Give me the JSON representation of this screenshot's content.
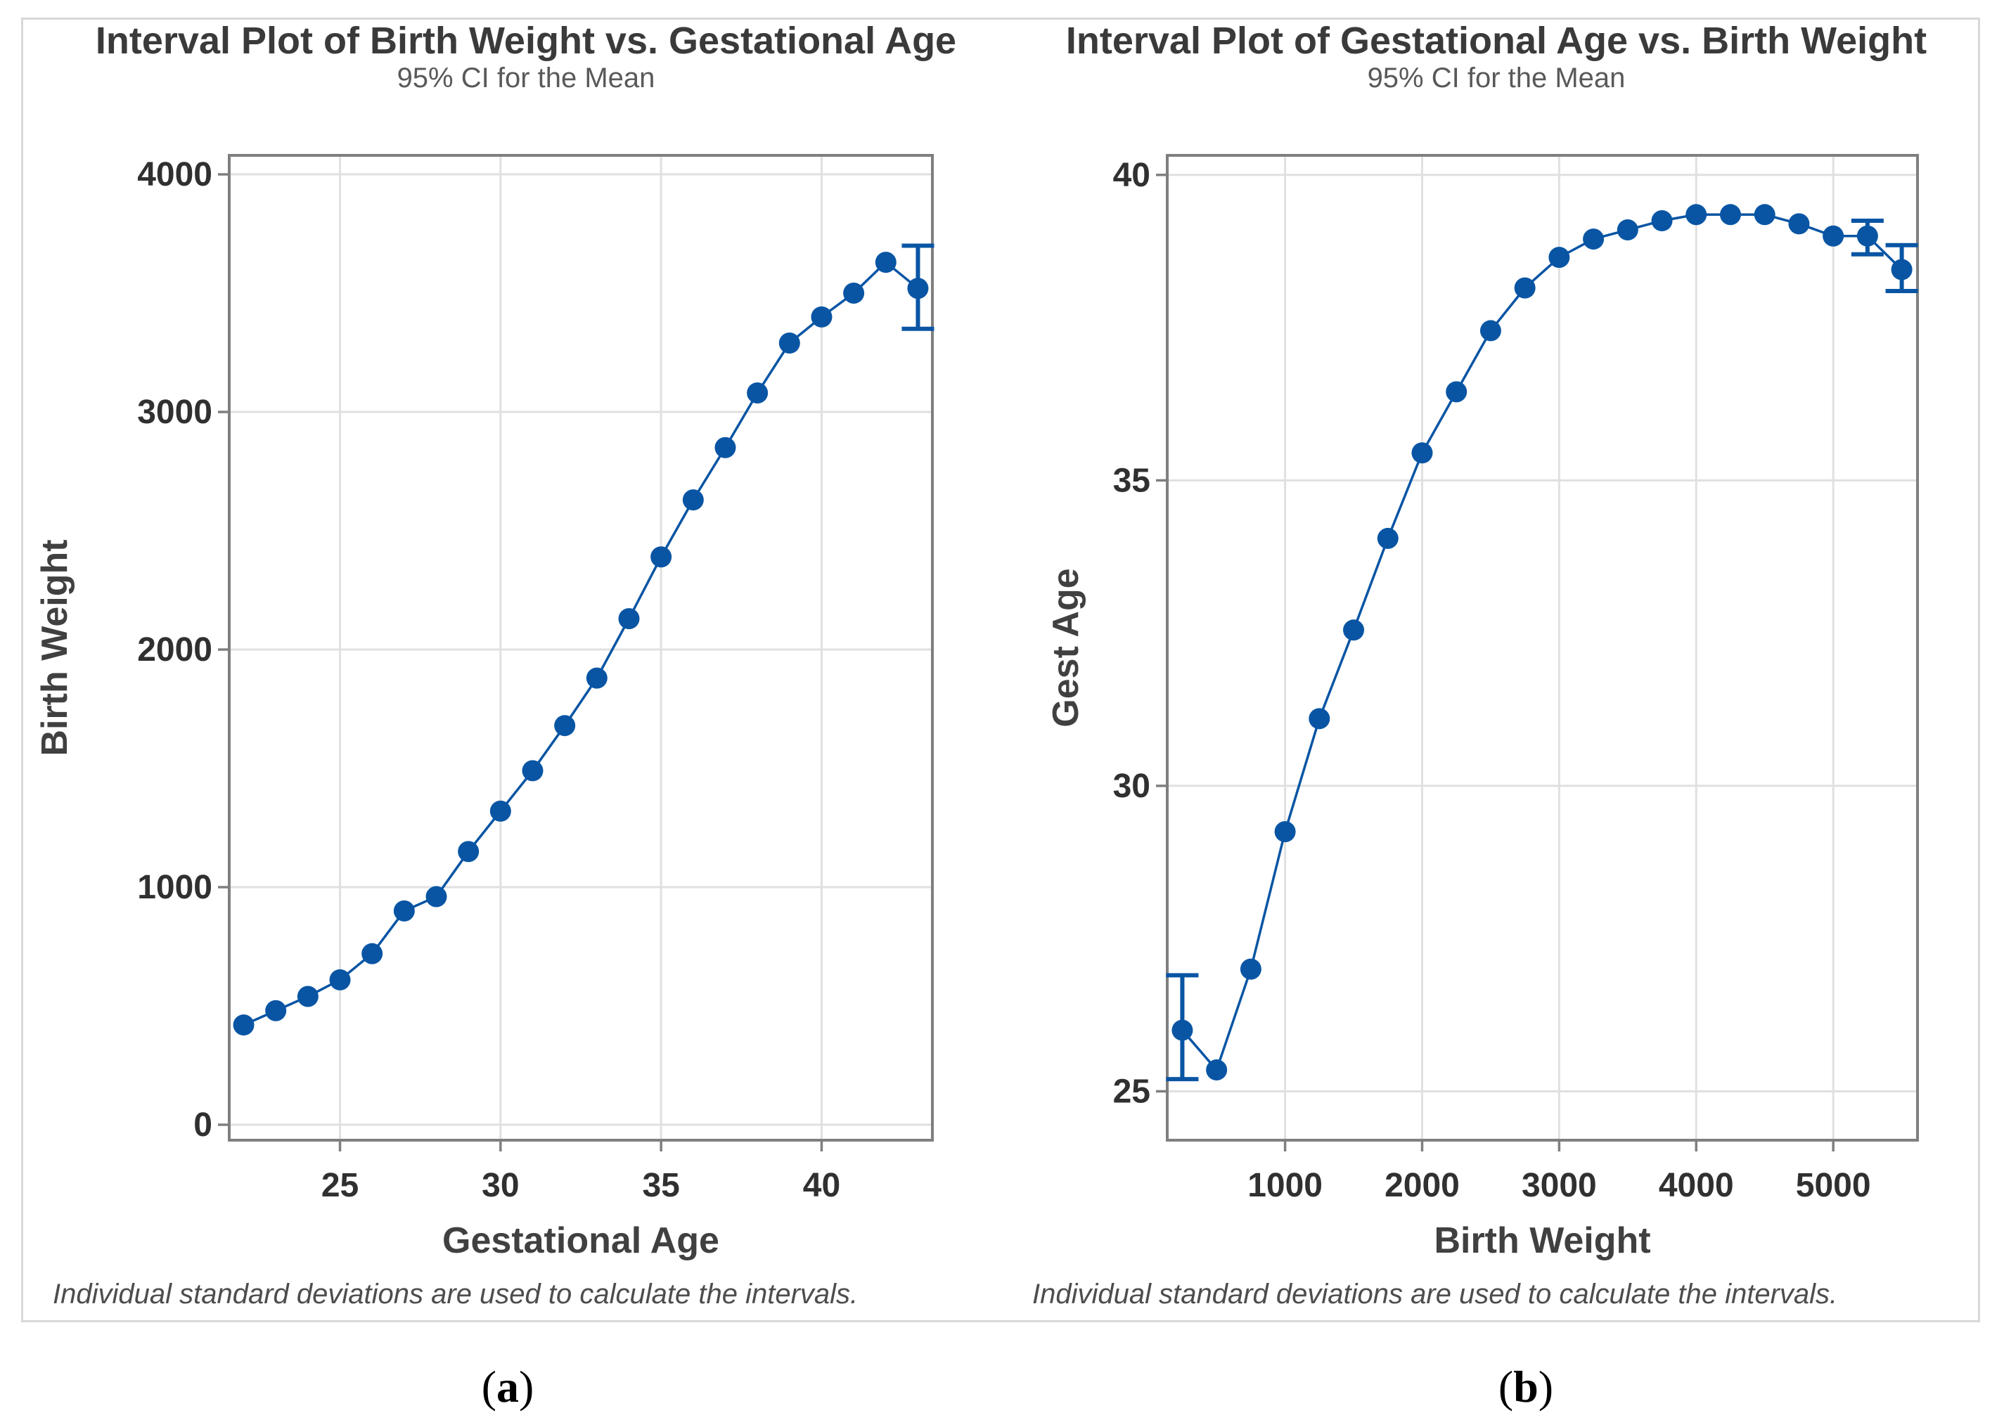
{
  "figure": {
    "captions": {
      "open": "(",
      "close": ")",
      "a_label": "a",
      "b_label": "b"
    },
    "colors": {
      "marker": "#0955a4",
      "line": "#0955a4",
      "frame": "#7f7f7f",
      "grid": "#e0e0e0",
      "title": "#3a3a3a",
      "subtitle": "#595959",
      "tick_label": "#303030",
      "axis_label": "#404040",
      "footnote": "#4d4d4d",
      "panel_border": "#d8d8d8"
    }
  },
  "chart_data": [
    {
      "type": "line",
      "title": "Interval Plot of Birth Weight vs. Gestational Age",
      "subtitle": "95% CI for the Mean",
      "xlabel": "Gestational Age",
      "ylabel": "Birth Weight",
      "footnote": "Individual standard deviations are used to calculate the intervals.",
      "grid": true,
      "xlim": [
        21.55,
        43.45
      ],
      "ylim": [
        -65,
        4080
      ],
      "xticks": [
        25,
        30,
        35,
        40
      ],
      "yticks": [
        0,
        1000,
        2000,
        3000,
        4000
      ],
      "points": [
        {
          "x": 22,
          "y": 420
        },
        {
          "x": 23,
          "y": 480
        },
        {
          "x": 24,
          "y": 540
        },
        {
          "x": 25,
          "y": 610
        },
        {
          "x": 26,
          "y": 720
        },
        {
          "x": 27,
          "y": 900
        },
        {
          "x": 28,
          "y": 960
        },
        {
          "x": 29,
          "y": 1150
        },
        {
          "x": 30,
          "y": 1320
        },
        {
          "x": 31,
          "y": 1490
        },
        {
          "x": 32,
          "y": 1680
        },
        {
          "x": 33,
          "y": 1880
        },
        {
          "x": 34,
          "y": 2130
        },
        {
          "x": 35,
          "y": 2390
        },
        {
          "x": 36,
          "y": 2630
        },
        {
          "x": 37,
          "y": 2850
        },
        {
          "x": 38,
          "y": 3080
        },
        {
          "x": 39,
          "y": 3290
        },
        {
          "x": 40,
          "y": 3400
        },
        {
          "x": 41,
          "y": 3500
        },
        {
          "x": 42,
          "y": 3630
        },
        {
          "x": 43,
          "y": 3520,
          "ci": [
            3350,
            3700
          ]
        }
      ]
    },
    {
      "type": "line",
      "title": "Interval Plot of Gestational Age vs. Birth Weight",
      "subtitle": "95% CI for the Mean",
      "xlabel": "Birth Weight",
      "ylabel": "Gest Age",
      "footnote": "Individual standard deviations are used to calculate the intervals.",
      "grid": true,
      "xlim": [
        140,
        5615
      ],
      "ylim": [
        24.2,
        40.32
      ],
      "xticks": [
        1000,
        2000,
        3000,
        4000,
        5000
      ],
      "yticks": [
        25,
        30,
        35,
        40
      ],
      "points": [
        {
          "x": 250,
          "y": 26.0,
          "ci": [
            25.2,
            26.9
          ]
        },
        {
          "x": 500,
          "y": 25.35
        },
        {
          "x": 750,
          "y": 27.0
        },
        {
          "x": 1000,
          "y": 29.25
        },
        {
          "x": 1250,
          "y": 31.1
        },
        {
          "x": 1500,
          "y": 32.55
        },
        {
          "x": 1750,
          "y": 34.05
        },
        {
          "x": 2000,
          "y": 35.45
        },
        {
          "x": 2250,
          "y": 36.45
        },
        {
          "x": 2500,
          "y": 37.45
        },
        {
          "x": 2750,
          "y": 38.15
        },
        {
          "x": 3000,
          "y": 38.65
        },
        {
          "x": 3250,
          "y": 38.95
        },
        {
          "x": 3500,
          "y": 39.1
        },
        {
          "x": 3750,
          "y": 39.25
        },
        {
          "x": 4000,
          "y": 39.35
        },
        {
          "x": 4250,
          "y": 39.35
        },
        {
          "x": 4500,
          "y": 39.35
        },
        {
          "x": 4750,
          "y": 39.2
        },
        {
          "x": 5000,
          "y": 39.0
        },
        {
          "x": 5250,
          "y": 39.0,
          "ci": [
            38.7,
            39.25
          ]
        },
        {
          "x": 5500,
          "y": 38.45,
          "ci": [
            38.1,
            38.85
          ]
        }
      ]
    }
  ]
}
